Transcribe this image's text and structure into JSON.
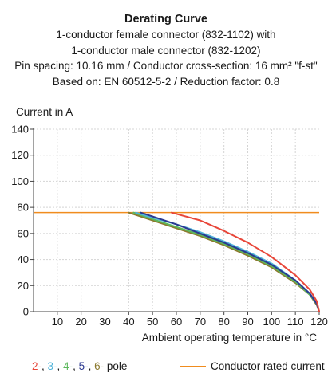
{
  "header": {
    "title": "Derating Curve",
    "line1": "1-conductor female connector (832-1102) with",
    "line2": "1-conductor male connector (832-1202)",
    "line3": "Pin spacing: 10.16 mm / Conductor cross-section: 16 mm² \"f-st\"",
    "line4": "Based on: EN 60512-5-2 / Reduction factor: 0.8"
  },
  "legend": {
    "poles": [
      {
        "label": "2-",
        "color": "#e8473a"
      },
      {
        "label": "3-",
        "color": "#4fb3d9"
      },
      {
        "label": "4-",
        "color": "#5cb85c"
      },
      {
        "label": "5-",
        "color": "#2b3990"
      },
      {
        "label": "6-",
        "color": "#8c7a2e"
      }
    ],
    "sep": ", ",
    "pole_word": " pole",
    "rated_label": "Conductor rated current",
    "rated_color": "#f08c1e"
  },
  "chart_data": {
    "type": "line",
    "ylabel": "Current in A",
    "xlabel": "Ambient operating temperature in °C",
    "xlim": [
      0,
      120
    ],
    "ylim": [
      0,
      140
    ],
    "xticks": [
      10,
      20,
      30,
      40,
      50,
      60,
      70,
      80,
      90,
      100,
      110,
      120
    ],
    "yticks": [
      0,
      20,
      40,
      60,
      80,
      100,
      120,
      140
    ],
    "grid": true,
    "rated_current": 76,
    "series": [
      {
        "name": "2-",
        "color": "#e8473a",
        "x": [
          58,
          70,
          80,
          90,
          100,
          110,
          116,
          119,
          120
        ],
        "y": [
          76,
          70,
          62,
          53,
          42,
          28,
          17,
          8,
          0
        ]
      },
      {
        "name": "3-",
        "color": "#4fb3d9",
        "x": [
          43,
          50,
          60,
          70,
          80,
          90,
          100,
          110,
          116,
          119,
          120
        ],
        "y": [
          76,
          72,
          67,
          61,
          54,
          46,
          37,
          24,
          14,
          6,
          0
        ]
      },
      {
        "name": "4-",
        "color": "#5cb85c",
        "x": [
          42,
          50,
          60,
          70,
          80,
          90,
          100,
          110,
          116,
          119,
          120
        ],
        "y": [
          76,
          71,
          65,
          59,
          52,
          44,
          35,
          23,
          13,
          6,
          0
        ]
      },
      {
        "name": "5-",
        "color": "#2b3990",
        "x": [
          45,
          50,
          60,
          70,
          80,
          90,
          100,
          110,
          116,
          119,
          120
        ],
        "y": [
          76,
          73,
          67,
          60,
          53,
          45,
          36,
          24,
          14,
          6,
          0
        ]
      },
      {
        "name": "6-",
        "color": "#8c7a2e",
        "x": [
          40,
          50,
          60,
          70,
          80,
          90,
          100,
          110,
          116,
          119,
          120
        ],
        "y": [
          76,
          70,
          64,
          58,
          51,
          43,
          34,
          22,
          13,
          5,
          0
        ]
      }
    ]
  }
}
